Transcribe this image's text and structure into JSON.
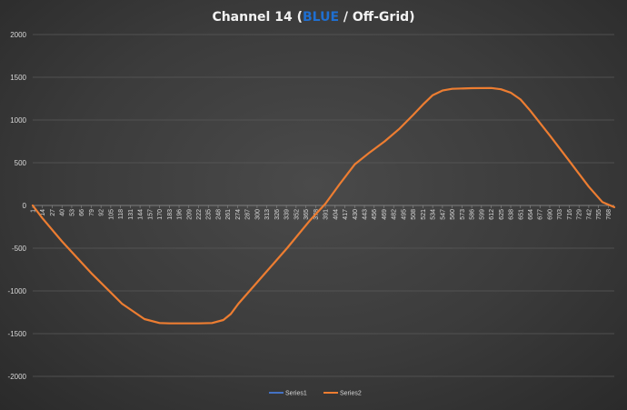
{
  "chart_data": {
    "type": "line",
    "title": {
      "prefix": "Channel 14 (",
      "highlight": "BLUE",
      "suffix": " / Off-Grid)",
      "highlight_color": "#1f6fd1"
    },
    "xlabel": "",
    "ylabel": "",
    "ylim": [
      -2000,
      2000
    ],
    "yticks": [
      -2000,
      -1500,
      -1000,
      -500,
      0,
      500,
      1000,
      1500,
      2000
    ],
    "xlim": [
      1,
      776
    ],
    "x_ticks": [
      1,
      14,
      27,
      40,
      53,
      66,
      79,
      92,
      105,
      118,
      131,
      144,
      157,
      170,
      183,
      196,
      209,
      222,
      235,
      248,
      261,
      274,
      287,
      300,
      313,
      326,
      339,
      352,
      365,
      378,
      391,
      404,
      417,
      430,
      443,
      456,
      469,
      482,
      495,
      508,
      521,
      534,
      547,
      560,
      573,
      586,
      599,
      612,
      625,
      638,
      651,
      664,
      677,
      690,
      703,
      716,
      729,
      742,
      755,
      768
    ],
    "grid": "horizontal",
    "legend_position": "bottom",
    "series": [
      {
        "name": "Series1",
        "color": "#4472c4",
        "x": [
          1,
          14,
          40,
          80,
          120,
          150,
          170,
          183,
          200,
          222,
          240,
          255,
          265,
          275,
          300,
          340,
          370,
          391,
          410,
          430,
          450,
          470,
          490,
          508,
          521,
          534,
          547,
          560,
          586,
          612,
          625,
          638,
          651,
          664,
          690,
          716,
          742,
          760,
          776
        ],
        "y": [
          0,
          -150,
          -420,
          -800,
          -1150,
          -1330,
          -1375,
          -1380,
          -1380,
          -1380,
          -1375,
          -1340,
          -1270,
          -1150,
          -900,
          -500,
          -180,
          20,
          250,
          480,
          620,
          750,
          900,
          1060,
          1180,
          1290,
          1345,
          1365,
          1372,
          1375,
          1360,
          1320,
          1240,
          1110,
          820,
          520,
          220,
          40,
          -20
        ]
      },
      {
        "name": "Series2",
        "color": "#ed7d31",
        "x": [
          1,
          14,
          40,
          80,
          120,
          150,
          170,
          183,
          200,
          222,
          240,
          255,
          265,
          275,
          300,
          340,
          370,
          391,
          410,
          430,
          450,
          470,
          490,
          508,
          521,
          534,
          547,
          560,
          586,
          612,
          625,
          638,
          651,
          664,
          690,
          716,
          742,
          760,
          776
        ],
        "y": [
          0,
          -150,
          -420,
          -800,
          -1150,
          -1330,
          -1375,
          -1380,
          -1380,
          -1380,
          -1375,
          -1340,
          -1270,
          -1150,
          -900,
          -500,
          -180,
          20,
          250,
          480,
          620,
          750,
          900,
          1060,
          1180,
          1290,
          1345,
          1365,
          1372,
          1375,
          1360,
          1320,
          1240,
          1110,
          820,
          520,
          220,
          40,
          -20
        ]
      }
    ]
  }
}
